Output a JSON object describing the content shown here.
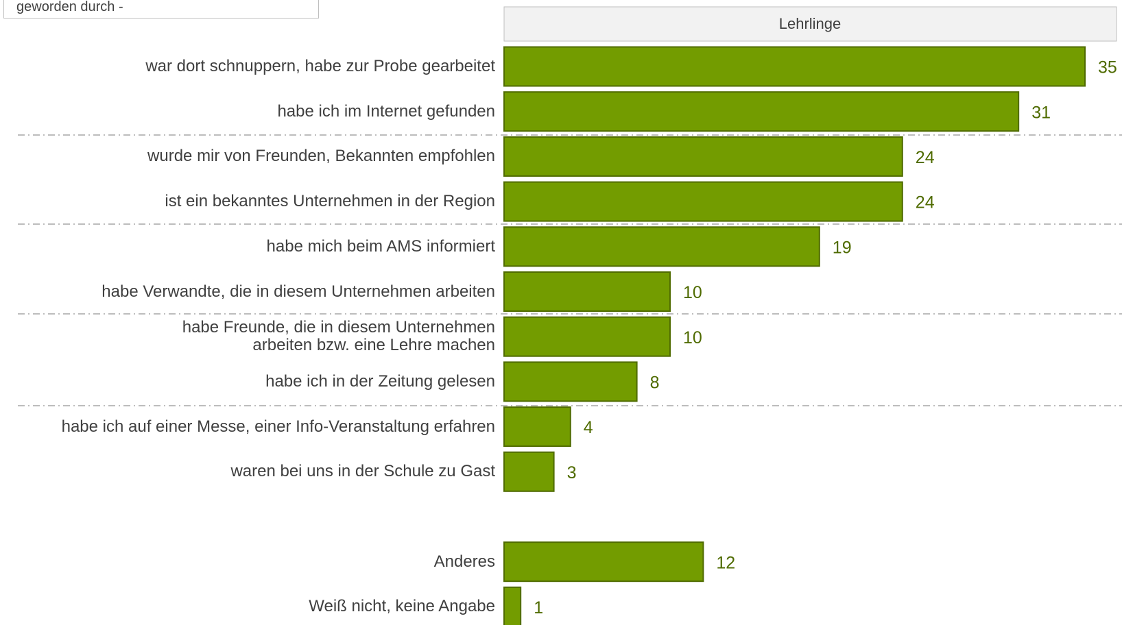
{
  "box_text": "geworden durch -",
  "chart_data": {
    "type": "bar",
    "orientation": "horizontal",
    "panel_title": "Lehrlinge",
    "color": "#739c00",
    "categories": [
      "war dort schnuppern, habe zur Probe gearbeitet",
      "habe ich im Internet gefunden",
      "wurde mir von Freunden, Bekannten empfohlen",
      "ist ein bekanntes Unternehmen in der Region",
      "habe mich beim AMS informiert",
      "habe Verwandte, die in diesem Unternehmen arbeiten",
      "habe Freunde, die in diesem Unternehmen\narbeiten bzw. eine Lehre machen",
      "habe ich in der Zeitung gelesen",
      "habe ich auf einer Messe, einer Info-Veranstaltung erfahren",
      "waren bei uns in der Schule zu Gast",
      null,
      "Anderes",
      "Weiß nicht, keine Angabe"
    ],
    "values": [
      35,
      31,
      24,
      24,
      19,
      10,
      10,
      8,
      4,
      3,
      null,
      12,
      1
    ]
  }
}
